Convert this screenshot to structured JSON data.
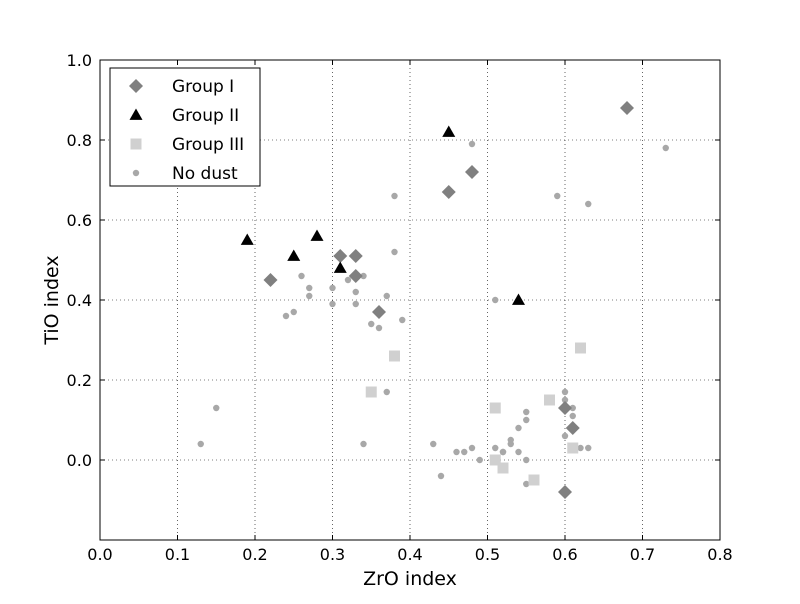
{
  "chart_data": {
    "type": "scatter",
    "title": "",
    "xlabel": "ZrO index",
    "ylabel": "TiO index",
    "xlim": [
      0.0,
      0.8
    ],
    "ylim": [
      -0.2,
      1.0
    ],
    "x_ticks": [
      0.0,
      0.1,
      0.2,
      0.3,
      0.4,
      0.5,
      0.6,
      0.7,
      0.8
    ],
    "y_ticks": [
      0.0,
      0.2,
      0.4,
      0.6,
      0.8,
      1.0
    ],
    "x_tick_labels": [
      "0.0",
      "0.1",
      "0.2",
      "0.3",
      "0.4",
      "0.5",
      "0.6",
      "0.7",
      "0.8"
    ],
    "y_tick_labels": [
      "0.0",
      "0.2",
      "0.4",
      "0.6",
      "0.8",
      "1.0"
    ],
    "grid": true,
    "legend_position": "top-left",
    "series": [
      {
        "name": "No dust",
        "marker": "circle",
        "color": "#a8a8a8",
        "points": [
          [
            0.13,
            0.04
          ],
          [
            0.15,
            0.13
          ],
          [
            0.24,
            0.36
          ],
          [
            0.25,
            0.37
          ],
          [
            0.26,
            0.46
          ],
          [
            0.27,
            0.43
          ],
          [
            0.27,
            0.41
          ],
          [
            0.3,
            0.43
          ],
          [
            0.3,
            0.39
          ],
          [
            0.32,
            0.45
          ],
          [
            0.33,
            0.42
          ],
          [
            0.33,
            0.39
          ],
          [
            0.34,
            0.46
          ],
          [
            0.35,
            0.34
          ],
          [
            0.36,
            0.33
          ],
          [
            0.37,
            0.41
          ],
          [
            0.37,
            0.17
          ],
          [
            0.38,
            0.52
          ],
          [
            0.38,
            0.66
          ],
          [
            0.39,
            0.35
          ],
          [
            0.34,
            0.04
          ],
          [
            0.43,
            0.04
          ],
          [
            0.44,
            -0.04
          ],
          [
            0.46,
            0.02
          ],
          [
            0.47,
            0.02
          ],
          [
            0.48,
            0.03
          ],
          [
            0.48,
            0.79
          ],
          [
            0.49,
            0.0
          ],
          [
            0.51,
            0.4
          ],
          [
            0.51,
            0.03
          ],
          [
            0.52,
            0.02
          ],
          [
            0.52,
            0.02
          ],
          [
            0.53,
            0.05
          ],
          [
            0.53,
            0.04
          ],
          [
            0.54,
            0.08
          ],
          [
            0.54,
            0.02
          ],
          [
            0.55,
            0.12
          ],
          [
            0.55,
            0.1
          ],
          [
            0.55,
            0.0
          ],
          [
            0.55,
            -0.06
          ],
          [
            0.56,
            -0.05
          ],
          [
            0.59,
            0.66
          ],
          [
            0.6,
            0.17
          ],
          [
            0.6,
            0.15
          ],
          [
            0.6,
            0.06
          ],
          [
            0.61,
            0.13
          ],
          [
            0.61,
            0.11
          ],
          [
            0.62,
            0.03
          ],
          [
            0.63,
            0.03
          ],
          [
            0.63,
            0.64
          ],
          [
            0.73,
            0.78
          ]
        ]
      },
      {
        "name": "Group I",
        "marker": "diamond",
        "color": "#808080",
        "points": [
          [
            0.22,
            0.45
          ],
          [
            0.31,
            0.51
          ],
          [
            0.33,
            0.51
          ],
          [
            0.33,
            0.46
          ],
          [
            0.36,
            0.37
          ],
          [
            0.45,
            0.67
          ],
          [
            0.48,
            0.72
          ],
          [
            0.6,
            0.13
          ],
          [
            0.61,
            0.08
          ],
          [
            0.6,
            -0.08
          ],
          [
            0.68,
            0.88
          ]
        ]
      },
      {
        "name": "Group II",
        "marker": "triangle",
        "color": "#000000",
        "points": [
          [
            0.19,
            0.55
          ],
          [
            0.25,
            0.51
          ],
          [
            0.28,
            0.56
          ],
          [
            0.31,
            0.48
          ],
          [
            0.45,
            0.82
          ],
          [
            0.54,
            0.4
          ]
        ]
      },
      {
        "name": "Group III",
        "marker": "square",
        "color": "#d0d0d0",
        "points": [
          [
            0.35,
            0.17
          ],
          [
            0.38,
            0.26
          ],
          [
            0.51,
            0.13
          ],
          [
            0.51,
            0.0
          ],
          [
            0.52,
            -0.02
          ],
          [
            0.56,
            -0.05
          ],
          [
            0.58,
            0.15
          ],
          [
            0.61,
            0.03
          ],
          [
            0.62,
            0.28
          ]
        ]
      }
    ],
    "legend_order": [
      "Group I",
      "Group II",
      "Group III",
      "No dust"
    ]
  }
}
